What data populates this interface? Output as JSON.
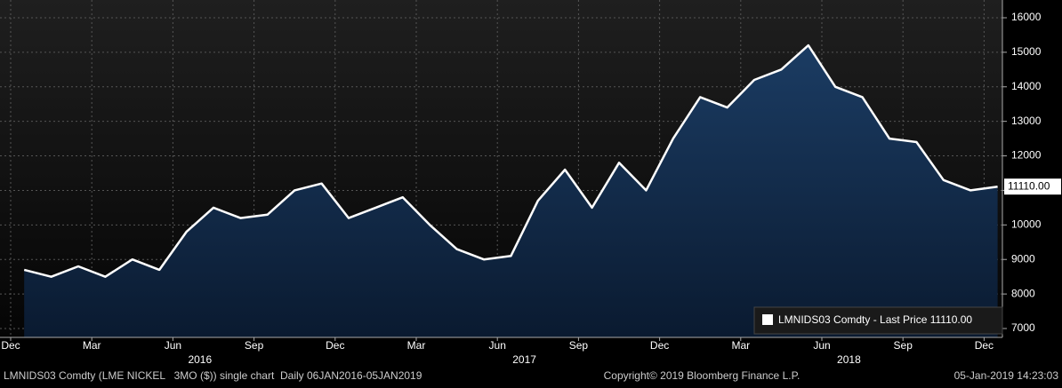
{
  "chart_data": {
    "type": "area",
    "x": [
      "2016-01",
      "2016-02",
      "2016-03",
      "2016-04",
      "2016-05",
      "2016-06",
      "2016-07",
      "2016-08",
      "2016-09",
      "2016-10",
      "2016-11",
      "2016-12",
      "2017-01",
      "2017-02",
      "2017-03",
      "2017-04",
      "2017-05",
      "2017-06",
      "2017-07",
      "2017-08",
      "2017-09",
      "2017-10",
      "2017-11",
      "2017-12",
      "2018-01",
      "2018-02",
      "2018-03",
      "2018-04",
      "2018-05",
      "2018-06",
      "2018-07",
      "2018-08",
      "2018-09",
      "2018-10",
      "2018-11",
      "2018-12",
      "2019-01"
    ],
    "series": [
      {
        "name": "LMNIDS03 Comdty - Last Price 11110.00",
        "color": "#ffffff",
        "values": [
          8700,
          8500,
          8800,
          8500,
          9000,
          8700,
          9800,
          10500,
          10200,
          10300,
          11000,
          11200,
          10200,
          10500,
          10800,
          10000,
          9300,
          9000,
          9100,
          10700,
          11600,
          10500,
          11800,
          11000,
          12500,
          13700,
          13400,
          14200,
          14500,
          15200,
          14000,
          13700,
          12500,
          12400,
          11300,
          11000,
          11110
        ]
      }
    ],
    "last_price": {
      "value": 11110,
      "label": "11110.00"
    },
    "ylim": [
      6743,
      16514
    ],
    "yticks": [
      7000,
      8000,
      9000,
      10000,
      11000,
      12000,
      13000,
      14000,
      15000,
      16000
    ],
    "xticks": [
      {
        "value": "2015-12",
        "label": "Dec"
      },
      {
        "value": "2016-03",
        "label": "Mar"
      },
      {
        "value": "2016-06",
        "label": "Jun"
      },
      {
        "value": "2016-09",
        "label": "Sep"
      },
      {
        "value": "2016-12",
        "label": "Dec"
      },
      {
        "value": "2017-03",
        "label": "Mar"
      },
      {
        "value": "2017-06",
        "label": "Jun"
      },
      {
        "value": "2017-09",
        "label": "Sep"
      },
      {
        "value": "2017-12",
        "label": "Dec"
      },
      {
        "value": "2018-03",
        "label": "Mar"
      },
      {
        "value": "2018-06",
        "label": "Jun"
      },
      {
        "value": "2018-09",
        "label": "Sep"
      },
      {
        "value": "2018-12",
        "label": "Dec"
      }
    ],
    "year_labels": [
      {
        "value": "2016-07",
        "label": "2016"
      },
      {
        "value": "2017-07",
        "label": "2017"
      },
      {
        "value": "2018-07",
        "label": "2018"
      }
    ],
    "grid": true,
    "footer": {
      "left": "LMNIDS03 Comdty (LME NICKEL   3MO ($)) single chart  Daily 06JAN2016-05JAN2019",
      "center": "Copyright© 2019 Bloomberg Finance L.P.",
      "right": "05-Jan-2019 14:23:03"
    }
  }
}
